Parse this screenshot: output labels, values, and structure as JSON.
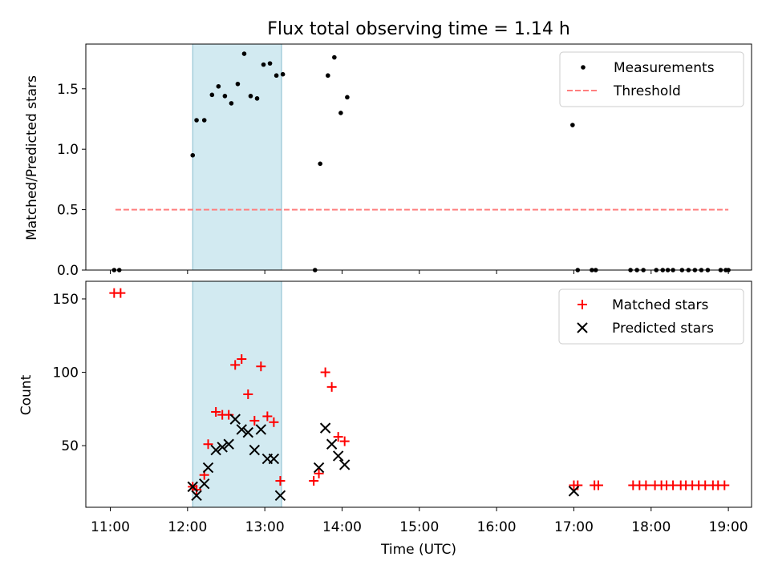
{
  "chart_data": [
    {
      "type": "scatter",
      "title": "Flux total observing time = 1.14 h",
      "xlabel": "",
      "ylabel": "Matched/Predicted stars",
      "xlim": [
        "10:41",
        "19:18"
      ],
      "ylim": [
        0,
        1.87
      ],
      "x_tick_labels": [
        "11:00",
        "12:00",
        "13:00",
        "14:00",
        "15:00",
        "16:00",
        "17:00",
        "18:00",
        "19:00"
      ],
      "y_ticks": [
        0.0,
        0.5,
        1.0,
        1.5
      ],
      "y_tick_labels": [
        "0.0",
        "0.5",
        "1.0",
        "1.5"
      ],
      "shaded_span": {
        "from": "12:04",
        "to": "13:13",
        "color": "#add8e6"
      },
      "legend": {
        "position": "top-right",
        "entries": [
          {
            "label": "Measurements",
            "marker": "dot",
            "color": "#000000"
          },
          {
            "label": "Threshold",
            "marker": "dashed-line",
            "color": "#ff7f7f"
          }
        ]
      },
      "threshold": {
        "value": 0.5,
        "from": "11:04",
        "to": "19:00"
      },
      "series": [
        {
          "name": "Measurements",
          "color": "#000000",
          "points": [
            [
              "11:03",
              0.0
            ],
            [
              "11:07",
              0.0
            ],
            [
              "12:04",
              0.95
            ],
            [
              "12:07",
              1.24
            ],
            [
              "12:13",
              1.24
            ],
            [
              "12:19",
              1.45
            ],
            [
              "12:24",
              1.52
            ],
            [
              "12:29",
              1.44
            ],
            [
              "12:34",
              1.38
            ],
            [
              "12:39",
              1.54
            ],
            [
              "12:44",
              1.79
            ],
            [
              "12:49",
              1.44
            ],
            [
              "12:54",
              1.42
            ],
            [
              "12:59",
              1.7
            ],
            [
              "13:04",
              1.71
            ],
            [
              "13:09",
              1.61
            ],
            [
              "13:14",
              1.62
            ],
            [
              "13:39",
              0.0
            ],
            [
              "13:43",
              0.88
            ],
            [
              "13:49",
              1.61
            ],
            [
              "13:54",
              1.76
            ],
            [
              "13:59",
              1.3
            ],
            [
              "14:04",
              1.43
            ],
            [
              "16:59",
              1.2
            ],
            [
              "17:03",
              0.0
            ],
            [
              "17:14",
              0.0
            ],
            [
              "17:17",
              0.0
            ],
            [
              "17:44",
              0.0
            ],
            [
              "17:49",
              0.0
            ],
            [
              "17:54",
              0.0
            ],
            [
              "18:04",
              0.0
            ],
            [
              "18:09",
              0.0
            ],
            [
              "18:13",
              0.0
            ],
            [
              "18:17",
              0.0
            ],
            [
              "18:24",
              0.0
            ],
            [
              "18:29",
              0.0
            ],
            [
              "18:34",
              0.0
            ],
            [
              "18:39",
              0.0
            ],
            [
              "18:44",
              0.0
            ],
            [
              "18:54",
              0.0
            ],
            [
              "18:58",
              0.0
            ],
            [
              "19:00",
              0.0
            ]
          ]
        }
      ]
    },
    {
      "type": "scatter",
      "title": "",
      "xlabel": "Time (UTC)",
      "ylabel": "Count",
      "xlim": [
        "10:41",
        "19:18"
      ],
      "ylim": [
        8,
        162
      ],
      "x_tick_labels": [
        "11:00",
        "12:00",
        "13:00",
        "14:00",
        "15:00",
        "16:00",
        "17:00",
        "18:00",
        "19:00"
      ],
      "y_ticks": [
        50,
        100,
        150
      ],
      "y_tick_labels": [
        "50",
        "100",
        "150"
      ],
      "shaded_span": {
        "from": "12:04",
        "to": "13:13",
        "color": "#add8e6"
      },
      "legend": {
        "position": "top-right",
        "entries": [
          {
            "label": "Matched stars",
            "marker": "plus",
            "color": "#ff0000"
          },
          {
            "label": "Predicted stars",
            "marker": "x",
            "color": "#000000"
          }
        ]
      },
      "series": [
        {
          "name": "Matched stars",
          "marker": "plus",
          "color": "#ff0000",
          "points": [
            [
              "11:03",
              154
            ],
            [
              "11:08",
              154
            ],
            [
              "12:04",
              22
            ],
            [
              "12:07",
              20
            ],
            [
              "12:13",
              30
            ],
            [
              "12:16",
              51
            ],
            [
              "12:22",
              73
            ],
            [
              "12:27",
              71
            ],
            [
              "12:32",
              71
            ],
            [
              "12:37",
              105
            ],
            [
              "12:42",
              109
            ],
            [
              "12:47",
              85
            ],
            [
              "12:52",
              67
            ],
            [
              "12:57",
              104
            ],
            [
              "13:02",
              70
            ],
            [
              "13:07",
              66
            ],
            [
              "13:12",
              26
            ],
            [
              "13:38",
              26
            ],
            [
              "13:42",
              31
            ],
            [
              "13:47",
              100
            ],
            [
              "13:52",
              90
            ],
            [
              "13:57",
              56
            ],
            [
              "14:02",
              53
            ],
            [
              "17:00",
              23
            ],
            [
              "17:03",
              23
            ],
            [
              "17:16",
              23
            ],
            [
              "17:19",
              23
            ],
            [
              "17:46",
              23
            ],
            [
              "17:51",
              23
            ],
            [
              "17:56",
              23
            ],
            [
              "18:03",
              23
            ],
            [
              "18:08",
              23
            ],
            [
              "18:12",
              23
            ],
            [
              "18:17",
              23
            ],
            [
              "18:23",
              23
            ],
            [
              "18:27",
              23
            ],
            [
              "18:32",
              23
            ],
            [
              "18:37",
              23
            ],
            [
              "18:42",
              23
            ],
            [
              "18:48",
              23
            ],
            [
              "18:52",
              23
            ],
            [
              "18:57",
              23
            ]
          ]
        },
        {
          "name": "Predicted stars",
          "marker": "x",
          "color": "#000000",
          "points": [
            [
              "12:04",
              22
            ],
            [
              "12:07",
              16
            ],
            [
              "12:13",
              24
            ],
            [
              "12:16",
              35
            ],
            [
              "12:22",
              47
            ],
            [
              "12:27",
              49
            ],
            [
              "12:32",
              51
            ],
            [
              "12:37",
              68
            ],
            [
              "12:42",
              61
            ],
            [
              "12:47",
              59
            ],
            [
              "12:52",
              47
            ],
            [
              "12:57",
              61
            ],
            [
              "13:02",
              41
            ],
            [
              "13:07",
              41
            ],
            [
              "13:12",
              16
            ],
            [
              "13:42",
              35
            ],
            [
              "13:47",
              62
            ],
            [
              "13:52",
              51
            ],
            [
              "13:57",
              43
            ],
            [
              "14:02",
              37
            ],
            [
              "17:00",
              19
            ]
          ]
        }
      ]
    }
  ]
}
